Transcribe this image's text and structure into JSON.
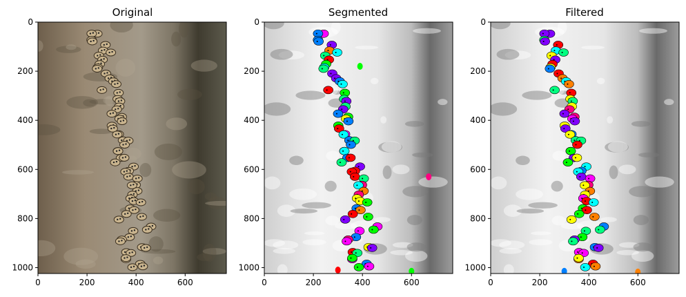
{
  "panels": [
    {
      "title": "Original",
      "x_ticks": [
        "0",
        "200",
        "400",
        "600"
      ],
      "y_ticks": [
        "0",
        "200",
        "400",
        "600",
        "800",
        "1000"
      ],
      "x_range": [
        0,
        768
      ],
      "y_range": [
        0,
        1024
      ],
      "style": "photo"
    },
    {
      "title": "Segmented",
      "x_ticks": [
        "0",
        "200",
        "400",
        "600"
      ],
      "y_ticks": [
        "0",
        "200",
        "400",
        "600",
        "800",
        "1000"
      ],
      "x_range": [
        0,
        768
      ],
      "y_range": [
        0,
        1024
      ],
      "style": "segmented"
    },
    {
      "title": "Filtered",
      "x_ticks": [
        "0",
        "200",
        "400",
        "600"
      ],
      "y_ticks": [
        "0",
        "200",
        "400",
        "600",
        "800",
        "1000"
      ],
      "x_range": [
        0,
        768
      ],
      "y_range": [
        0,
        1024
      ],
      "style": "filtered"
    }
  ],
  "colors": {
    "bark": "#8a7a66",
    "bark_dark": "#4a4536",
    "beetle": "#c9b48e",
    "grey_bg": "#d9d9d9",
    "segment_palette": [
      "#ff00ff",
      "#00ff00",
      "#0080ff",
      "#ff8000",
      "#00ffff",
      "#ff0080",
      "#8000ff",
      "#ffff00",
      "#ff0000",
      "#00ff80"
    ]
  }
}
